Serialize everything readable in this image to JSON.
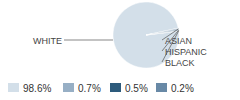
{
  "chart_data": {
    "type": "pie",
    "categories": [
      "WHITE",
      "ASIAN",
      "HISPANIC",
      "BLACK"
    ],
    "values": [
      98.6,
      0.7,
      0.5,
      0.2
    ],
    "value_labels": [
      "98.6%",
      "0.7%",
      "0.5%",
      "0.2%"
    ],
    "colors": [
      "#d3dfe9",
      "#97afc5",
      "#2d5b7c",
      "#6889a6"
    ],
    "legend": "bottom",
    "data_labels": true
  }
}
